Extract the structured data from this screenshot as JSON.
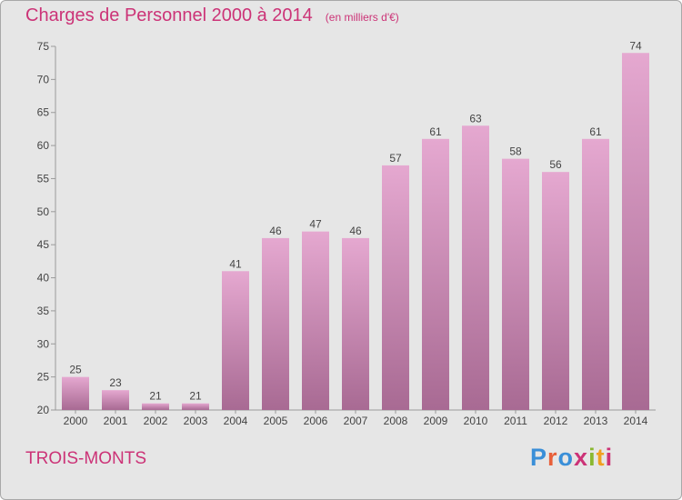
{
  "title": "Charges de Personnel 2000 à 2014",
  "subtitle": "(en milliers d'€)",
  "commune": "TROIS-MONTS",
  "logo": {
    "text": "Proxiti",
    "colors": [
      "#3a8fd8",
      "#e8603a",
      "#3a8fd8",
      "#cc3377",
      "#8ab830",
      "#f0a020",
      "#cc3377"
    ]
  },
  "colors": {
    "accent": "#cc3377",
    "bar_top": "#e5a8d0",
    "bar_bottom": "#a86a93",
    "background": "#e6e6e6"
  },
  "chart_data": {
    "type": "bar",
    "categories": [
      "2000",
      "2001",
      "2002",
      "2003",
      "2004",
      "2005",
      "2006",
      "2007",
      "2008",
      "2009",
      "2010",
      "2011",
      "2012",
      "2013",
      "2014"
    ],
    "values": [
      25,
      23,
      21,
      21,
      41,
      46,
      47,
      46,
      57,
      61,
      63,
      58,
      56,
      61,
      74
    ],
    "title": "Charges de Personnel 2000 à 2014",
    "subtitle": "(en milliers d'€)",
    "xlabel": "",
    "ylabel": "",
    "ylim": [
      20,
      75
    ],
    "yticks": [
      20,
      25,
      30,
      35,
      40,
      45,
      50,
      55,
      60,
      65,
      70,
      75
    ],
    "grid": false,
    "legend": "none"
  }
}
